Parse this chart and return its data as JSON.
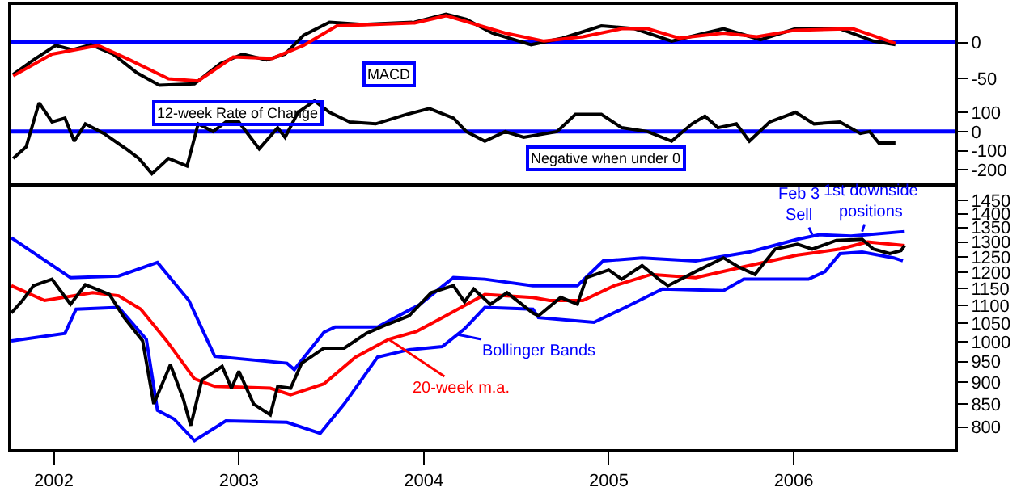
{
  "chart_data": [
    {
      "type": "line",
      "xlim": [
        2001.77,
        2006.87
      ],
      "ylim": [
        -67,
        52
      ],
      "yticks": [
        0,
        -50
      ],
      "tick_labels": "y",
      "series": [
        {
          "color": "#000000",
          "x": [
            2001.78,
            2001.89,
            2002.01,
            2002.1,
            2002.2,
            2002.32,
            2002.45,
            2002.57,
            2002.76,
            2002.9,
            2003.02,
            2003.15,
            2003.25,
            2003.35,
            2003.49,
            2003.67,
            2003.95,
            2004.12,
            2004.23,
            2004.37,
            2004.58,
            2004.75,
            2004.96,
            2005.14,
            2005.34,
            2005.52,
            2005.62,
            2005.82,
            2006.01,
            2006.25,
            2006.43,
            2006.55
          ],
          "values": [
            -44,
            -24,
            -4,
            -10,
            -3,
            -16,
            -42,
            -59,
            -57,
            -29,
            -16,
            -24,
            -16,
            10,
            28,
            25,
            28,
            39,
            32,
            13,
            -3,
            6,
            23,
            19,
            2,
            13,
            19,
            4,
            19,
            19,
            2,
            -3
          ]
        },
        {
          "color": "#ff0000",
          "x": [
            2001.78,
            2001.99,
            2002.24,
            2002.41,
            2002.62,
            2002.78,
            2002.97,
            2003.18,
            2003.35,
            2003.53,
            2003.95,
            2004.12,
            2004.44,
            2004.65,
            2004.86,
            2005.07,
            2005.21,
            2005.38,
            2005.62,
            2005.8,
            2006.01,
            2006.32,
            2006.55
          ],
          "values": [
            -46,
            -16,
            -4,
            -24,
            -50,
            -53,
            -20,
            -22,
            -4,
            23,
            27,
            37,
            13,
            2,
            8,
            19,
            19,
            6,
            13,
            8,
            17,
            19,
            -1
          ]
        }
      ],
      "ref_lines": [
        {
          "axis": "y",
          "value": 0,
          "color": "#0000ff",
          "line_style": "solid"
        }
      ],
      "annotations": [
        "MACD"
      ]
    },
    {
      "type": "line",
      "xlim": [
        2001.77,
        2006.87
      ],
      "ylim": [
        -268,
        211
      ],
      "yticks": [
        100,
        0,
        -100,
        -200
      ],
      "tick_labels": "y",
      "series": [
        {
          "color": "#000000",
          "x": [
            2001.78,
            2001.85,
            2001.92,
            2001.99,
            2002.06,
            2002.11,
            2002.17,
            2002.27,
            2002.39,
            2002.46,
            2002.53,
            2002.62,
            2002.72,
            2002.78,
            2002.86,
            2002.93,
            2003.0,
            2003.11,
            2003.21,
            2003.25,
            2003.32,
            2003.41,
            2003.49,
            2003.6,
            2003.74,
            2003.91,
            2004.03,
            2004.16,
            2004.23,
            2004.33,
            2004.44,
            2004.54,
            2004.72,
            2004.82,
            2004.96,
            2005.07,
            2005.21,
            2005.34,
            2005.45,
            2005.52,
            2005.59,
            2005.69,
            2005.76,
            2005.87,
            2006.01,
            2006.11,
            2006.25,
            2006.36,
            2006.41,
            2006.46,
            2006.55
          ],
          "values": [
            -140,
            -80,
            150,
            50,
            70,
            -50,
            40,
            -10,
            -90,
            -140,
            -220,
            -140,
            -180,
            40,
            0,
            50,
            50,
            -90,
            20,
            -30,
            100,
            160,
            100,
            50,
            40,
            90,
            120,
            70,
            0,
            -50,
            0,
            -30,
            0,
            90,
            90,
            20,
            0,
            -50,
            40,
            80,
            20,
            40,
            -50,
            50,
            100,
            40,
            50,
            -10,
            0,
            -60,
            -60
          ]
        }
      ],
      "ref_lines": [
        {
          "axis": "y",
          "value": 0,
          "color": "#0000ff",
          "line_style": "solid"
        }
      ],
      "annotations": [
        "12-week Rate of Change",
        "Negative when under 0"
      ]
    },
    {
      "type": "line",
      "xlim": [
        2001.77,
        2006.87
      ],
      "xticks": [
        {
          "value": 2002,
          "label": "2002"
        },
        {
          "value": 2003,
          "label": "2003"
        },
        {
          "value": 2004,
          "label": "2004"
        },
        {
          "value": 2005,
          "label": "2005"
        },
        {
          "value": 2006,
          "label": "2006"
        }
      ],
      "ylim": [
        755,
        1505
      ],
      "log": true,
      "yticks": [
        800,
        850,
        900,
        950,
        1000,
        1050,
        1100,
        1150,
        1200,
        1250,
        1300,
        1350,
        1400,
        1450
      ],
      "series": [
        {
          "color": "#0000ff",
          "x": [
            2001.77,
            2002.09,
            2002.35,
            2002.56,
            2002.73,
            2002.87,
            2003.26,
            2003.3,
            2003.46,
            2003.52,
            2003.75,
            2003.98,
            2004.16,
            2004.33,
            2004.59,
            2004.83,
            2004.97,
            2005.18,
            2005.47,
            2005.76,
            2006.02,
            2006.14,
            2006.31,
            2006.6
          ],
          "values": [
            1314,
            1184,
            1189,
            1232,
            1115,
            963,
            946,
            930,
            1026,
            1040,
            1040,
            1104,
            1184,
            1179,
            1159,
            1159,
            1237,
            1247,
            1237,
            1266,
            1309,
            1325,
            1320,
            1336
          ]
        },
        {
          "color": "#0000ff",
          "x": [
            2001.77,
            2002.06,
            2002.12,
            2002.35,
            2002.5,
            2002.56,
            2002.65,
            2002.76,
            2002.93,
            2003.26,
            2003.44,
            2003.57,
            2003.75,
            2003.92,
            2004.1,
            2004.22,
            2004.33,
            2004.59,
            2004.62,
            2004.92,
            2005.09,
            2005.29,
            2005.62,
            2005.73,
            2006.08,
            2006.17,
            2006.25,
            2006.37,
            2006.54,
            2006.59
          ],
          "values": [
            1003,
            1023,
            1090,
            1095,
            1007,
            836,
            817,
            772,
            813,
            810,
            787,
            850,
            961,
            980,
            988,
            1035,
            1095,
            1090,
            1066,
            1053,
            1095,
            1149,
            1144,
            1179,
            1179,
            1203,
            1261,
            1266,
            1247,
            1237
          ]
        },
        {
          "color": "#ff0000",
          "x": [
            2001.77,
            2001.95,
            2002.21,
            2002.35,
            2002.47,
            2002.61,
            2002.76,
            2002.87,
            2003.17,
            2003.28,
            2003.46,
            2003.63,
            2003.81,
            2003.96,
            2004.1,
            2004.33,
            2004.59,
            2004.68,
            2004.86,
            2005.03,
            2005.23,
            2005.47,
            2005.73,
            2006.02,
            2006.25,
            2006.4,
            2006.6
          ],
          "values": [
            1159,
            1115,
            1138,
            1129,
            1090,
            1003,
            908,
            890,
            886,
            871,
            896,
            961,
            1007,
            1028,
            1066,
            1133,
            1124,
            1115,
            1115,
            1159,
            1194,
            1184,
            1218,
            1256,
            1276,
            1300,
            1288
          ]
        },
        {
          "color": "#000000",
          "x": [
            2001.77,
            2001.83,
            2001.89,
            2001.99,
            2002.09,
            2002.17,
            2002.3,
            2002.38,
            2002.48,
            2002.54,
            2002.63,
            2002.7,
            2002.74,
            2002.8,
            2002.91,
            2002.96,
            2003.0,
            2003.08,
            2003.17,
            2003.21,
            2003.28,
            2003.34,
            2003.46,
            2003.57,
            2003.69,
            2003.81,
            2003.92,
            2004.04,
            2004.16,
            2004.22,
            2004.27,
            2004.36,
            2004.45,
            2004.59,
            2004.62,
            2004.74,
            2004.83,
            2004.88,
            2005.0,
            2005.07,
            2005.18,
            2005.27,
            2005.32,
            2005.47,
            2005.62,
            2005.7,
            2005.79,
            2005.9,
            2006.02,
            2006.1,
            2006.23,
            2006.37,
            2006.43,
            2006.52,
            2006.58,
            2006.6
          ],
          "values": [
            1079,
            1115,
            1159,
            1179,
            1104,
            1162,
            1133,
            1066,
            1003,
            850,
            942,
            861,
            803,
            905,
            938,
            886,
            926,
            850,
            826,
            890,
            886,
            946,
            984,
            984,
            1023,
            1049,
            1071,
            1138,
            1159,
            1111,
            1149,
            1104,
            1138,
            1079,
            1071,
            1124,
            1104,
            1184,
            1208,
            1179,
            1222,
            1179,
            1159,
            1203,
            1247,
            1218,
            1194,
            1276,
            1292,
            1276,
            1305,
            1309,
            1276,
            1261,
            1271,
            1288
          ]
        }
      ],
      "annotations": [
        {
          "text": "20-week m.a.",
          "x": 2003.81,
          "y": 1007
        },
        {
          "text": "Bollinger Bands",
          "x": 2004.18,
          "y": 1020
        },
        {
          "text": "Feb 3\nSell",
          "x": 2006.1,
          "y": 1325
        },
        {
          "text": "1st downside\npositions",
          "x": 2006.37,
          "y": 1336
        }
      ]
    }
  ]
}
